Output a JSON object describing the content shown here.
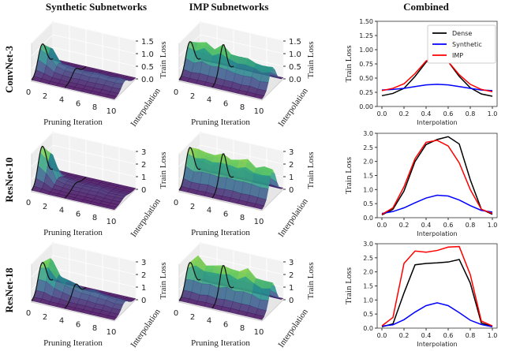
{
  "column_titles": [
    "Synthetic Subnetworks",
    "IMP Subnetworks",
    "Combined"
  ],
  "row_labels": [
    "ConvNet-3",
    "ResNet-10",
    "ResNet-18"
  ],
  "surface_plots": {
    "xlabel": "Pruning Iteration",
    "ylabel": "Interpolation",
    "zlabel": "Train Loss",
    "x_ticks": [
      "0",
      "2",
      "4",
      "6",
      "8",
      "10"
    ],
    "colormap": "viridis",
    "rows": [
      {
        "z_ticks": [
          "0.0",
          "0.5",
          "1.0",
          "1.5"
        ],
        "zmax": 1.5,
        "synthetic_peak_loss_by_iteration": [
          1.1,
          0.9,
          0.4,
          0.35,
          0.3,
          0.3,
          0.3,
          0.3,
          0.3,
          0.3,
          0.3
        ],
        "imp_peak_loss_by_iteration": [
          1.2,
          1.1,
          1.2,
          1.1,
          1.2,
          1.0,
          1.0,
          0.9,
          0.9,
          0.8,
          0.8
        ]
      },
      {
        "z_ticks": [
          "0",
          "1",
          "2",
          "3"
        ],
        "zmax": 3,
        "synthetic_peak_loss_by_iteration": [
          2.9,
          2.2,
          0.5,
          0.4,
          0.3,
          0.3,
          0.3,
          0.3,
          0.2,
          0.2,
          0.2
        ],
        "imp_peak_loss_by_iteration": [
          2.8,
          2.5,
          2.4,
          2.6,
          2.5,
          2.4,
          2.6,
          2.5,
          2.3,
          2.4,
          2.2
        ]
      },
      {
        "z_ticks": [
          "0",
          "1",
          "2",
          "3"
        ],
        "zmax": 3,
        "synthetic_peak_loss_by_iteration": [
          2.4,
          2.6,
          1.5,
          1.3,
          1.0,
          0.8,
          0.9,
          0.7,
          0.7,
          0.6,
          0.6
        ],
        "imp_peak_loss_by_iteration": [
          2.4,
          2.8,
          2.2,
          2.6,
          2.4,
          2.5,
          2.5,
          2.6,
          2.3,
          2.1,
          2.0
        ]
      }
    ]
  },
  "chart_data": [
    {
      "type": "line",
      "xlabel": "Interpolation",
      "ylabel": "Train Loss",
      "xlim": [
        0,
        1
      ],
      "ylim": [
        0,
        1.5
      ],
      "x_ticks": [
        "0.0",
        "0.2",
        "0.4",
        "0.6",
        "0.8",
        "1.0"
      ],
      "y_ticks": [
        "0.00",
        "0.25",
        "0.50",
        "0.75",
        "1.00",
        "1.25",
        "1.50"
      ],
      "legend": "top-right",
      "x": [
        0,
        0.1,
        0.2,
        0.3,
        0.4,
        0.5,
        0.6,
        0.7,
        0.8,
        0.9,
        1.0
      ],
      "series": [
        {
          "name": "Dense",
          "color": "#000000",
          "values": [
            0.19,
            0.23,
            0.32,
            0.53,
            0.78,
            0.93,
            0.79,
            0.53,
            0.33,
            0.22,
            0.18
          ]
        },
        {
          "name": "Synthetic",
          "color": "#0000ff",
          "values": [
            0.29,
            0.3,
            0.32,
            0.35,
            0.38,
            0.39,
            0.38,
            0.35,
            0.32,
            0.29,
            0.28
          ]
        },
        {
          "name": "IMP",
          "color": "#ff0000",
          "values": [
            0.28,
            0.32,
            0.4,
            0.58,
            0.8,
            0.91,
            0.79,
            0.56,
            0.39,
            0.3,
            0.26
          ]
        }
      ]
    },
    {
      "type": "line",
      "xlabel": "Interpolation",
      "ylabel": "Train Loss",
      "xlim": [
        0,
        1
      ],
      "ylim": [
        0,
        3.0
      ],
      "x_ticks": [
        "0.0",
        "0.2",
        "0.4",
        "0.6",
        "0.8",
        "1.0"
      ],
      "y_ticks": [
        "0.0",
        "0.5",
        "1.0",
        "1.5",
        "2.0",
        "2.5",
        "3.0"
      ],
      "x": [
        0,
        0.1,
        0.2,
        0.3,
        0.4,
        0.5,
        0.6,
        0.7,
        0.8,
        0.9,
        1.0
      ],
      "series": [
        {
          "color": "#000000",
          "values": [
            0.1,
            0.3,
            0.95,
            2.0,
            2.6,
            2.78,
            2.88,
            2.62,
            1.35,
            0.3,
            0.12
          ]
        },
        {
          "color": "#0000ff",
          "values": [
            0.15,
            0.22,
            0.35,
            0.53,
            0.7,
            0.8,
            0.77,
            0.63,
            0.43,
            0.26,
            0.2
          ]
        },
        {
          "color": "#ff0000",
          "values": [
            0.12,
            0.35,
            1.1,
            2.1,
            2.68,
            2.75,
            2.55,
            1.95,
            1.0,
            0.3,
            0.15
          ]
        }
      ]
    },
    {
      "type": "line",
      "xlabel": "Interpolation",
      "ylabel": "Train Loss",
      "xlim": [
        0,
        1
      ],
      "ylim": [
        0,
        3.0
      ],
      "x_ticks": [
        "0.0",
        "0.2",
        "0.4",
        "0.6",
        "0.8",
        "1.0"
      ],
      "y_ticks": [
        "0.0",
        "0.5",
        "1.0",
        "1.5",
        "2.0",
        "2.5",
        "3.0"
      ],
      "x": [
        0,
        0.1,
        0.2,
        0.3,
        0.4,
        0.5,
        0.6,
        0.7,
        0.8,
        0.9,
        1.0
      ],
      "series": [
        {
          "color": "#000000",
          "values": [
            0.05,
            0.15,
            1.25,
            2.25,
            2.3,
            2.32,
            2.35,
            2.44,
            1.6,
            0.18,
            0.06
          ]
        },
        {
          "color": "#0000ff",
          "values": [
            0.07,
            0.12,
            0.3,
            0.57,
            0.8,
            0.9,
            0.8,
            0.55,
            0.28,
            0.13,
            0.05
          ]
        },
        {
          "color": "#ff0000",
          "values": [
            0.08,
            0.38,
            2.3,
            2.74,
            2.7,
            2.76,
            2.88,
            2.9,
            1.9,
            0.25,
            0.08
          ]
        }
      ]
    }
  ]
}
